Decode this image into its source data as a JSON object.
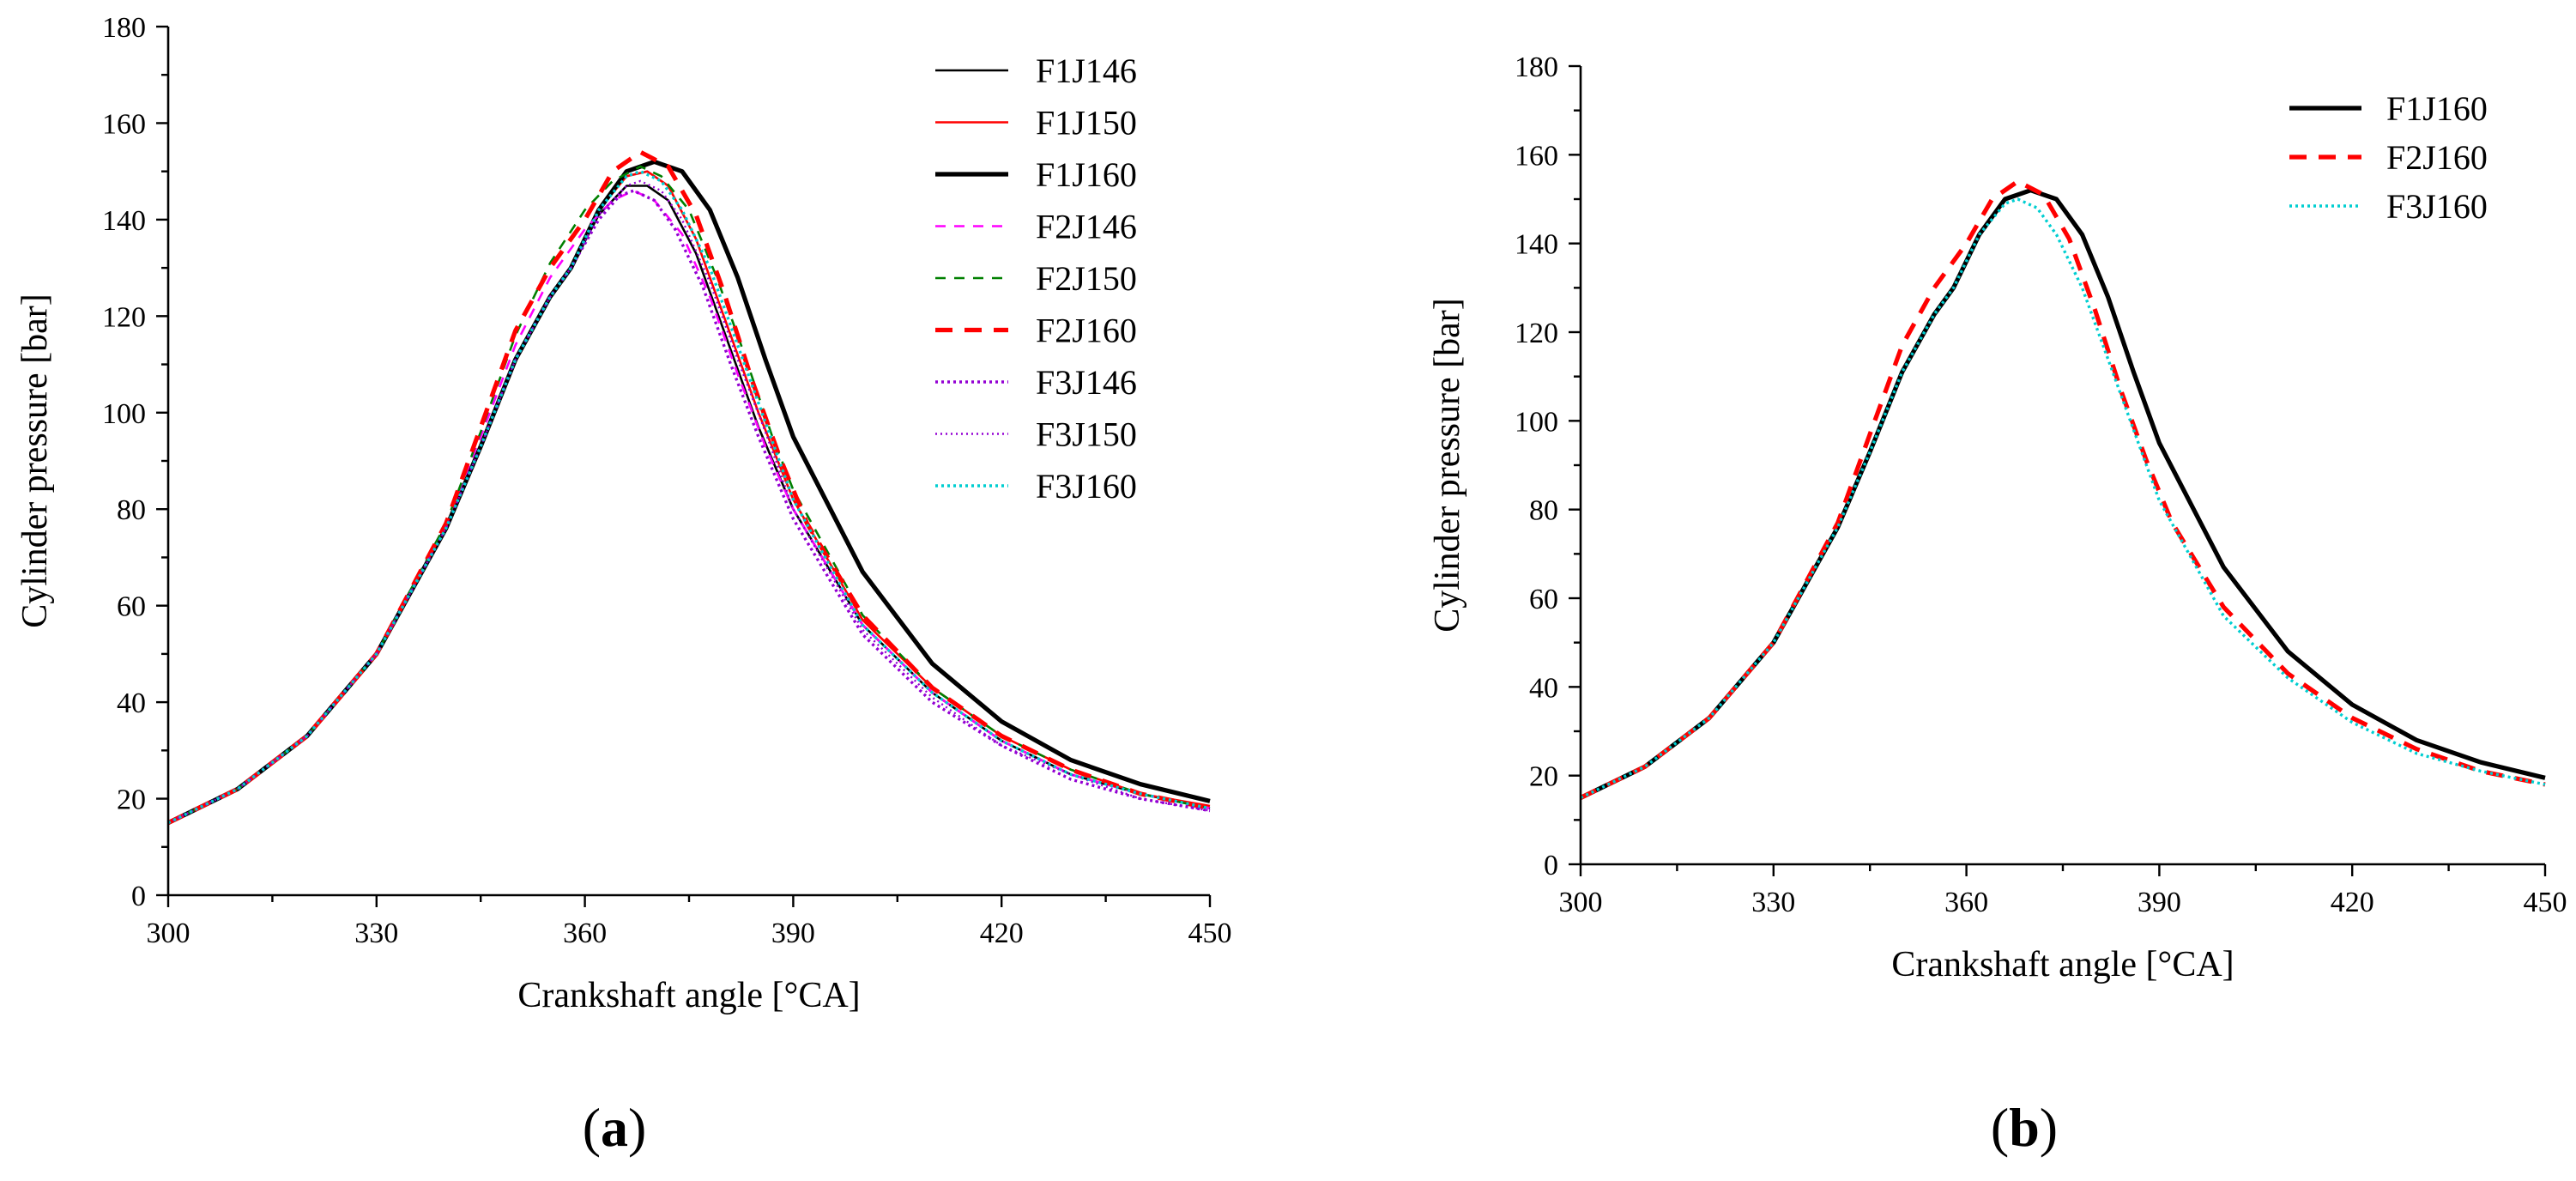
{
  "figure": {
    "panel_labels": [
      {
        "open": "(",
        "letter": "a",
        "close": ")"
      },
      {
        "open": "(",
        "letter": "b",
        "close": ")"
      }
    ]
  },
  "chart_data": [
    {
      "type": "line",
      "panel": "a",
      "title": "",
      "xlabel": "Crankshaft angle [°CA]",
      "ylabel": "Cylinder pressure [bar]",
      "xlim": [
        300,
        450
      ],
      "ylim": [
        0,
        180
      ],
      "xticks": [
        300,
        330,
        360,
        390,
        420,
        450
      ],
      "yticks": [
        0,
        20,
        40,
        60,
        80,
        100,
        120,
        140,
        160,
        180
      ],
      "legend_position": "top-right",
      "series": [
        {
          "name": "F1J146",
          "color": "#000000",
          "style": "solid-thin",
          "x": [
            300,
            310,
            320,
            330,
            340,
            345,
            350,
            355,
            358,
            362,
            366,
            369,
            372,
            376,
            380,
            385,
            390,
            400,
            410,
            420,
            430,
            440,
            450
          ],
          "y": [
            15,
            22,
            33,
            50,
            76,
            93,
            111,
            124,
            130,
            141,
            147,
            147,
            144,
            133,
            117,
            97,
            80,
            56,
            42,
            32,
            25,
            21,
            18
          ]
        },
        {
          "name": "F1J150",
          "color": "#ff0000",
          "style": "solid-thin",
          "x": [
            300,
            310,
            320,
            330,
            340,
            345,
            350,
            355,
            358,
            362,
            366,
            369,
            372,
            376,
            380,
            385,
            390,
            400,
            410,
            420,
            430,
            440,
            450
          ],
          "y": [
            15,
            22,
            33,
            50,
            76,
            93,
            111,
            124,
            130,
            142,
            149,
            150,
            147,
            136,
            120,
            100,
            82,
            57,
            43,
            33,
            26,
            21,
            18.5
          ]
        },
        {
          "name": "F1J160",
          "color": "#000000",
          "style": "solid-thick",
          "x": [
            300,
            310,
            320,
            330,
            340,
            345,
            350,
            355,
            358,
            362,
            366,
            370,
            374,
            378,
            382,
            386,
            390,
            400,
            410,
            420,
            430,
            440,
            450
          ],
          "y": [
            15,
            22,
            33,
            50,
            76,
            93,
            111,
            124,
            130,
            142,
            150,
            152,
            150,
            142,
            128,
            111,
            95,
            67,
            48,
            36,
            28,
            23,
            19.5
          ]
        },
        {
          "name": "F2J146",
          "color": "#ff00ff",
          "style": "dash",
          "x": [
            300,
            310,
            320,
            330,
            340,
            345,
            350,
            355,
            360,
            364,
            367,
            370,
            374,
            378,
            382,
            386,
            390,
            400,
            410,
            420,
            430,
            440,
            450
          ],
          "y": [
            15,
            22,
            33,
            50,
            77,
            95,
            114,
            128,
            138,
            144,
            146,
            144,
            137,
            124,
            108,
            93,
            80,
            56,
            42,
            32,
            25,
            21,
            18
          ]
        },
        {
          "name": "F2J150",
          "color": "#008000",
          "style": "dash",
          "x": [
            300,
            310,
            320,
            330,
            340,
            345,
            350,
            355,
            360,
            364,
            368,
            371,
            375,
            379,
            383,
            387,
            390,
            400,
            410,
            420,
            430,
            440,
            450
          ],
          "y": [
            15,
            22,
            33,
            50,
            77,
            96,
            116,
            131,
            142,
            148,
            151,
            149,
            142,
            128,
            112,
            95,
            84,
            58,
            43,
            33,
            26,
            21,
            18
          ]
        },
        {
          "name": "F2J160",
          "color": "#ff0000",
          "style": "dash-thick",
          "x": [
            300,
            310,
            320,
            330,
            340,
            345,
            350,
            355,
            360,
            364,
            368,
            372,
            376,
            380,
            384,
            388,
            392,
            400,
            410,
            420,
            430,
            440,
            450
          ],
          "y": [
            15,
            22,
            33,
            50,
            77,
            97,
            117,
            130,
            140,
            150,
            154,
            151,
            141,
            125,
            107,
            91,
            77,
            58,
            43,
            33,
            26,
            21,
            18
          ]
        },
        {
          "name": "F3J146",
          "color": "#9400d3",
          "style": "dot",
          "x": [
            300,
            310,
            320,
            330,
            340,
            345,
            350,
            355,
            358,
            362,
            365,
            367,
            370,
            373,
            377,
            381,
            385,
            390,
            400,
            410,
            420,
            430,
            440,
            450
          ],
          "y": [
            15,
            22,
            33,
            50,
            76,
            93,
            111,
            124,
            130,
            140,
            145,
            146,
            144,
            138,
            126,
            110,
            95,
            78,
            54,
            40,
            31,
            24,
            20,
            17.5
          ]
        },
        {
          "name": "F3J150",
          "color": "#9400d3",
          "style": "dot-light",
          "x": [
            300,
            310,
            320,
            330,
            340,
            345,
            350,
            355,
            358,
            362,
            366,
            368,
            371,
            374,
            378,
            382,
            386,
            390,
            400,
            410,
            420,
            430,
            440,
            450
          ],
          "y": [
            15,
            22,
            33,
            50,
            76,
            93,
            111,
            124,
            130,
            141,
            147,
            148,
            146,
            140,
            127,
            111,
            96,
            80,
            55,
            41,
            31,
            25,
            20,
            17.5
          ]
        },
        {
          "name": "F3J160",
          "color": "#00ced1",
          "style": "dot",
          "x": [
            300,
            310,
            320,
            330,
            340,
            345,
            350,
            355,
            358,
            362,
            366,
            368,
            371,
            374,
            378,
            382,
            386,
            390,
            400,
            410,
            420,
            430,
            440,
            450
          ],
          "y": [
            15,
            22,
            33,
            50,
            76,
            93,
            111,
            124,
            130,
            142,
            149,
            150,
            148,
            142,
            130,
            114,
            98,
            82,
            56,
            42,
            32,
            25,
            21,
            18
          ]
        }
      ]
    },
    {
      "type": "line",
      "panel": "b",
      "title": "",
      "xlabel": "Crankshaft angle [°CA]",
      "ylabel": "Cylinder pressure [bar]",
      "xlim": [
        300,
        450
      ],
      "ylim": [
        0,
        180
      ],
      "xticks": [
        300,
        330,
        360,
        390,
        420,
        450
      ],
      "yticks": [
        0,
        20,
        40,
        60,
        80,
        100,
        120,
        140,
        160,
        180
      ],
      "legend_position": "top-right",
      "series": [
        {
          "name": "F1J160",
          "color": "#000000",
          "style": "solid-thick",
          "x": [
            300,
            310,
            320,
            330,
            340,
            345,
            350,
            355,
            358,
            362,
            366,
            370,
            374,
            378,
            382,
            386,
            390,
            400,
            410,
            420,
            430,
            440,
            450
          ],
          "y": [
            15,
            22,
            33,
            50,
            76,
            93,
            111,
            124,
            130,
            142,
            150,
            152,
            150,
            142,
            128,
            111,
            95,
            67,
            48,
            36,
            28,
            23,
            19.5
          ]
        },
        {
          "name": "F2J160",
          "color": "#ff0000",
          "style": "dash-thick",
          "x": [
            300,
            310,
            320,
            330,
            340,
            345,
            350,
            355,
            360,
            364,
            368,
            372,
            376,
            380,
            384,
            388,
            392,
            400,
            410,
            420,
            430,
            440,
            450
          ],
          "y": [
            15,
            22,
            33,
            50,
            77,
            97,
            117,
            130,
            140,
            150,
            154,
            151,
            141,
            125,
            107,
            91,
            77,
            58,
            43,
            33,
            26,
            21,
            18
          ]
        },
        {
          "name": "F3J160",
          "color": "#00ced1",
          "style": "dot",
          "x": [
            300,
            310,
            320,
            330,
            340,
            345,
            350,
            355,
            358,
            362,
            366,
            368,
            371,
            374,
            378,
            382,
            386,
            390,
            400,
            410,
            420,
            430,
            440,
            450
          ],
          "y": [
            15,
            22,
            33,
            50,
            76,
            93,
            111,
            124,
            130,
            142,
            149,
            150,
            148,
            142,
            130,
            114,
            98,
            82,
            56,
            42,
            32,
            25,
            21,
            18
          ]
        }
      ]
    }
  ]
}
